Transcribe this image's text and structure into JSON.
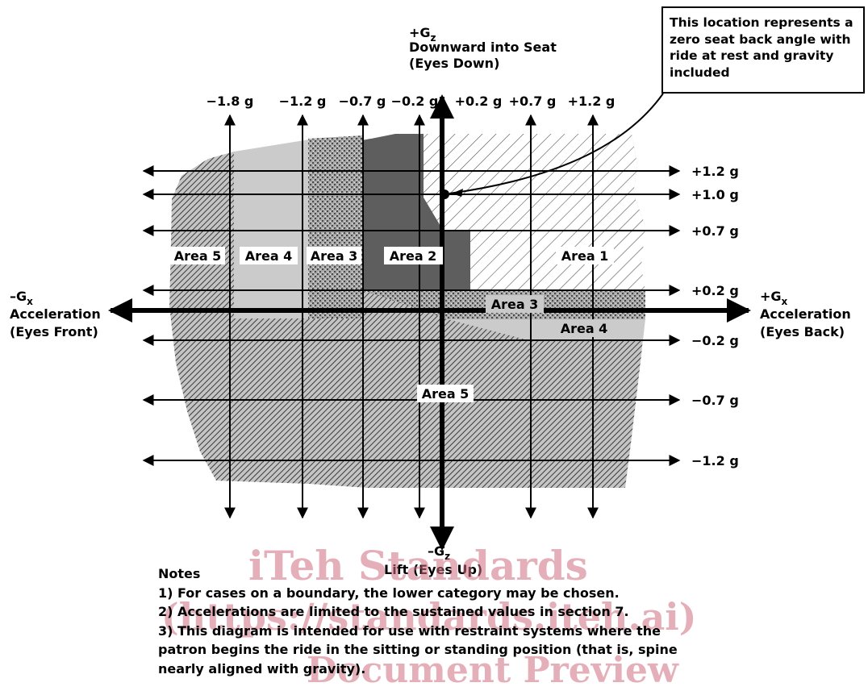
{
  "axes": {
    "gz_pos": {
      "symbol": "+G",
      "sub": "z",
      "line1": "Downward into Seat",
      "line2": "(Eyes Down)"
    },
    "gz_neg": {
      "symbol": "–G",
      "sub": "z",
      "line1": "Lift (Eyes Up)"
    },
    "gx_neg": {
      "symbol": "–G",
      "sub": "x",
      "line1": "Acceleration",
      "line2": "(Eyes Front)"
    },
    "gx_pos": {
      "symbol": "+G",
      "sub": "x",
      "line1": "Acceleration",
      "line2": "(Eyes Back)"
    }
  },
  "gx_ticks": [
    "−1.8 g",
    "−1.2 g",
    "−0.7 g",
    "−0.2 g",
    "+0.2 g",
    "+0.7 g",
    "+1.2 g"
  ],
  "gz_ticks": [
    "+1.2 g",
    "+1.0 g",
    "+0.7 g",
    "+0.2 g",
    "−0.2 g",
    "−0.7 g",
    "−1.2 g"
  ],
  "areas": [
    {
      "label": "Area 5",
      "fill": "#bdbdbd",
      "pattern": "dense-hatch"
    },
    {
      "label": "Area 4",
      "fill": "#c8c8c8",
      "pattern": "solid-light"
    },
    {
      "label": "Area 3",
      "fill": "#9a9a9a",
      "pattern": "stipple"
    },
    {
      "label": "Area 2",
      "fill": "#626262",
      "pattern": "solid-dark"
    },
    {
      "label": "Area 1",
      "fill": "#ffffff",
      "pattern": "sparse-hatch"
    },
    {
      "label": "Area 3"
    },
    {
      "label": "Area 4"
    },
    {
      "label": "Area 5"
    }
  ],
  "callout": {
    "text": "This location represents a zero seat back angle with ride at rest and gravity included"
  },
  "notes": {
    "heading": "Notes",
    "items": [
      "1) For cases on a boundary, the lower category may be chosen.",
      "2) Accelerations are limited to the sustained values in section 7.",
      "3) This diagram is intended for use with restraint systems where the",
      "patron begins the ride in the sitting or standing position (that is, spine",
      "nearly aligned with gravity)."
    ]
  },
  "watermark": [
    "iTeh Standards",
    "(https://standards.iteh.ai)",
    "Document Preview"
  ]
}
